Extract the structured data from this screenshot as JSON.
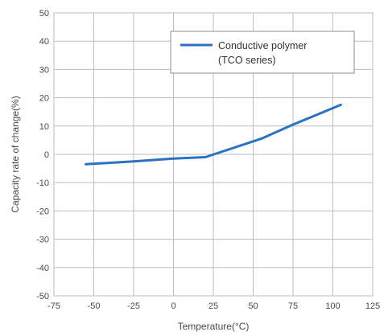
{
  "chart_data": {
    "type": "line",
    "xlabel": "Temperature(°C)",
    "ylabel": "Capacity rate of change(%)",
    "xlim": [
      -75,
      125
    ],
    "ylim": [
      -50,
      50
    ],
    "x_ticks": [
      -75,
      -50,
      -25,
      0,
      25,
      50,
      75,
      100,
      125
    ],
    "y_ticks": [
      -50,
      -40,
      -30,
      -20,
      -10,
      0,
      10,
      20,
      30,
      40,
      50
    ],
    "x_tick_labels": [
      "-75",
      "-50",
      "-25",
      "0",
      "25",
      "50",
      "75",
      "100",
      "125"
    ],
    "y_tick_labels": [
      "-50",
      "-40",
      "-30",
      "-20",
      "-10",
      "0",
      "10",
      "20",
      "30",
      "40",
      "50"
    ],
    "grid": true,
    "legend_position": "top-right",
    "series": [
      {
        "name": "Conductive polymer (TCO series)",
        "legend_lines": [
          "Conductive polymer",
          "(TCO series)"
        ],
        "color": "#2a72c4",
        "x": [
          -55,
          -25,
          0,
          20,
          55,
          75,
          105
        ],
        "y": [
          -3.5,
          -2.5,
          -1.5,
          -1,
          5.5,
          10.5,
          17.5
        ]
      }
    ]
  }
}
